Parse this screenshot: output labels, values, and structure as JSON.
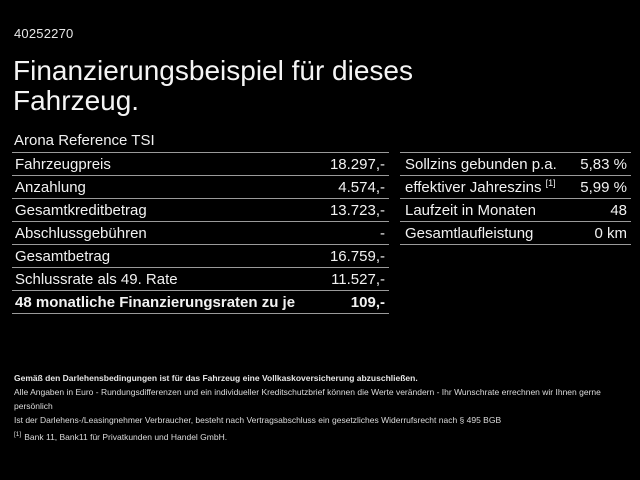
{
  "colors": {
    "background": "#000000",
    "text": "#f2f2f2",
    "separator": "#9a9a9a"
  },
  "header": {
    "vehicle_id": "40252270",
    "title": "Finanzierungsbeispiel für dieses Fahrzeug.",
    "model": "Arona Reference TSI"
  },
  "finance_table": {
    "rows": [
      {
        "label": "Fahrzeugpreis",
        "value": "18.297,-"
      },
      {
        "label": "Anzahlung",
        "value": "4.574,-"
      },
      {
        "label": "Gesamtkreditbetrag",
        "value": "13.723,-"
      },
      {
        "label": "Abschlussgebühren",
        "value": "-"
      },
      {
        "label": "Gesamtbetrag",
        "value": "16.759,-"
      },
      {
        "label": "Schlussrate als 49. Rate",
        "value": "11.527,-"
      },
      {
        "label": "48 monatliche Finanzierungsraten zu je",
        "value": "109,-"
      }
    ]
  },
  "conditions_table": {
    "rows": [
      {
        "label": "Sollzins gebunden p.a.",
        "value": "5,83 %"
      },
      {
        "label": "effektiver Jahreszins ",
        "sup": "[1]",
        "value": "5,99 %"
      },
      {
        "label": "Laufzeit in Monaten",
        "value": "48"
      },
      {
        "label": "Gesamtlaufleistung",
        "value": "0 km"
      }
    ]
  },
  "footer": {
    "bold_note": "Gemäß den Darlehensbedingungen ist für das Fahrzeug eine Vollkaskoversicherung abzuschließen.",
    "note_line1": "Alle Angaben in Euro - Rundungsdifferenzen und ein individueller Kreditschutzbrief können die Werte verändern - Ihr Wunschrate errechnen wir Ihnen gerne persönlich",
    "note_line2": "Ist der Darlehens-/Leasingnehmer Verbraucher, besteht nach Vertragsabschluss ein gesetzliches Widerrufsrecht nach § 495 BGB",
    "footnote_marker": "[1]",
    "footnote_text": "Bank 11, Bank11 für Privatkunden und Handel GmbH."
  }
}
